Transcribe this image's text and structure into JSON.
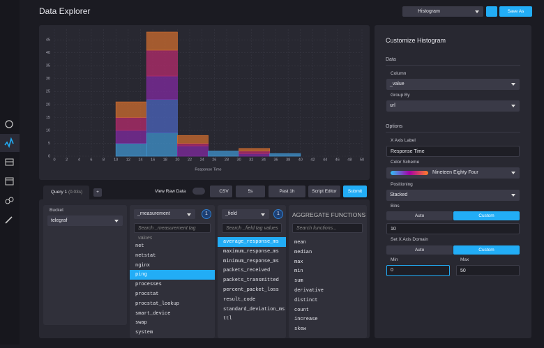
{
  "header": {
    "title": "Data Explorer",
    "vis_type": "Histogram",
    "save": "Save As"
  },
  "histogram": {
    "type": "histogram",
    "x_label": "Response Time",
    "bins": [
      10,
      15,
      20,
      25,
      30,
      35,
      40
    ],
    "series": [
      {
        "color": "#3f8fc8",
        "values": [
          5,
          9,
          0,
          2,
          0,
          1
        ]
      },
      {
        "color": "#4a63b8",
        "values": [
          0,
          13,
          0,
          0,
          0,
          0
        ]
      },
      {
        "color": "#7e2a9c",
        "values": [
          5,
          9,
          4,
          0,
          1,
          0
        ]
      },
      {
        "color": "#b02c6a",
        "values": [
          5,
          10,
          1,
          0,
          1,
          0
        ]
      },
      {
        "color": "#c86a30",
        "values": [
          6,
          7,
          3,
          0,
          1,
          0
        ]
      }
    ],
    "xlim": [
      0,
      50
    ],
    "ylim": [
      0,
      48
    ],
    "xticks": [
      0,
      2,
      4,
      6,
      8,
      10,
      12,
      14,
      16,
      18,
      20,
      22,
      24,
      26,
      28,
      30,
      32,
      34,
      36,
      38,
      40,
      42,
      44,
      46,
      48,
      50
    ],
    "yticks": [
      0,
      5,
      10,
      15,
      20,
      25,
      30,
      35,
      40,
      45
    ],
    "grid": true
  },
  "query_bar": {
    "tab": "Query 1",
    "time": "(0.03s)",
    "add": "+",
    "raw": "View Raw Data",
    "csv": "CSV",
    "refresh": "5s",
    "range": "Past 1h",
    "script": "Script Editor",
    "submit": "Submit"
  },
  "bucket": {
    "label": "Bucket",
    "value": "telegraf"
  },
  "measurement": {
    "key": "_measurement",
    "count": "1",
    "search": "Search _measurement tag values",
    "selected_index": 3,
    "items": [
      "net",
      "netstat",
      "nginx",
      "ping",
      "processes",
      "procstat",
      "procstat_lookup",
      "smart_device",
      "swap",
      "system"
    ]
  },
  "field": {
    "key": "_field",
    "count": "1",
    "search": "Search _field tag values",
    "selected_index": 0,
    "items": [
      "average_response_ms",
      "maximum_response_ms",
      "minimum_response_ms",
      "packets_received",
      "packets_transmitted",
      "percent_packet_loss",
      "result_code",
      "standard_deviation_ms",
      "ttl"
    ]
  },
  "aggregate": {
    "title": "AGGREGATE FUNCTIONS",
    "search": "Search functions...",
    "items": [
      "mean",
      "median",
      "max",
      "min",
      "sum",
      "derivative",
      "distinct",
      "count",
      "increase",
      "skew"
    ]
  },
  "customize": {
    "title": "Customize Histogram",
    "data_section": "Data",
    "column_label": "Column",
    "column": "_value",
    "group_label": "Group By",
    "group": "url",
    "options_section": "Options",
    "xlabel_label": "X Axis Label",
    "xlabel": "Response Time",
    "scheme_label": "Color Scheme",
    "scheme": "Nineteen Eighty Four",
    "position_label": "Positioning",
    "position": "Stacked",
    "bins_label": "Bins",
    "bins_auto": "Auto",
    "bins_custom": "Custom",
    "bins": "10",
    "domain_label": "Set X Axis Domain",
    "domain_auto": "Auto",
    "domain_custom": "Custom",
    "min_label": "Min",
    "min": "0",
    "max_label": "Max",
    "max": "50"
  }
}
